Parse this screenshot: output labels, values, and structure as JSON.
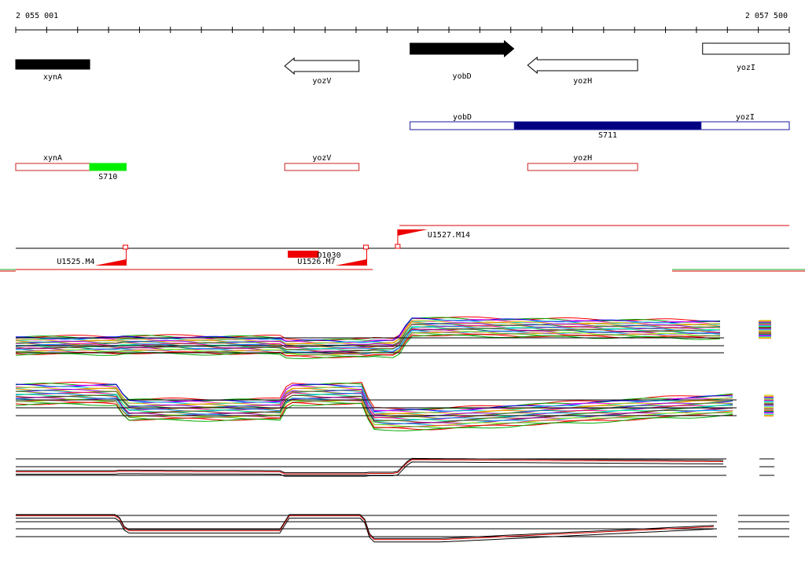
{
  "ruler": {
    "start_label": "2 055 001",
    "end_label": "2 057 500",
    "start_bp": 2055001,
    "end_bp": 2057500
  },
  "colors": {
    "gene_fill": "#000000",
    "gene_outline": "#000000",
    "operon_outline": "#1a1aa0",
    "operon_fill": "#000080",
    "transcript_outline": "#cc2222",
    "transcript_fill": "#00ee00",
    "promoter": "#ee0000",
    "line_black": "#000000",
    "line_red": "#dd0000",
    "line_green": "#22aa22"
  },
  "genes": [
    {
      "name": "xynA",
      "strand": "+",
      "filled": true,
      "start_bp": 2055001,
      "end_bp": 2055240
    },
    {
      "name": "yozV",
      "strand": "-",
      "filled": false,
      "start_bp": 2055870,
      "end_bp": 2056110
    },
    {
      "name": "yobD",
      "strand": "+",
      "filled": true,
      "start_bp": 2056275,
      "end_bp": 2056610
    },
    {
      "name": "yozH",
      "strand": "-",
      "filled": false,
      "start_bp": 2056655,
      "end_bp": 2057010
    },
    {
      "name": "yozI",
      "strand": "+",
      "filled": false,
      "start_bp": 2057220,
      "end_bp": 2057500
    }
  ],
  "operon_upper": {
    "segments": [
      {
        "name": "yobD",
        "start_bp": 2056275,
        "end_bp": 2056612,
        "filled": false
      },
      {
        "name": "",
        "start_bp": 2056612,
        "end_bp": 2057215,
        "filled": true
      },
      {
        "name": "yozI",
        "start_bp": 2057215,
        "end_bp": 2057500,
        "filled": false
      }
    ],
    "label": "S711"
  },
  "operons_lower": [
    {
      "segments": [
        {
          "name": "xynA",
          "start_bp": 2055001,
          "end_bp": 2055240,
          "filled": false
        },
        {
          "name": "",
          "start_bp": 2055240,
          "end_bp": 2055358,
          "filled": true
        }
      ],
      "label": "S710"
    },
    {
      "segments": [
        {
          "name": "yozV",
          "start_bp": 2055870,
          "end_bp": 2056110,
          "filled": false
        }
      ],
      "label": ""
    },
    {
      "segments": [
        {
          "name": "yozH",
          "start_bp": 2056655,
          "end_bp": 2057010,
          "filled": false
        }
      ],
      "label": ""
    }
  ],
  "promoters": [
    {
      "name": "U1525.M4",
      "bp": 2055358,
      "direction": "left"
    },
    {
      "name": "U1526.M7",
      "bp": 2056135,
      "direction": "left"
    },
    {
      "name": "U1527.M14",
      "bp": 2056235,
      "direction": "right"
    }
  ],
  "feature_box": {
    "name": "D1030",
    "start_bp": 2055880,
    "end_bp": 2055980
  },
  "tracks_label": ""
}
